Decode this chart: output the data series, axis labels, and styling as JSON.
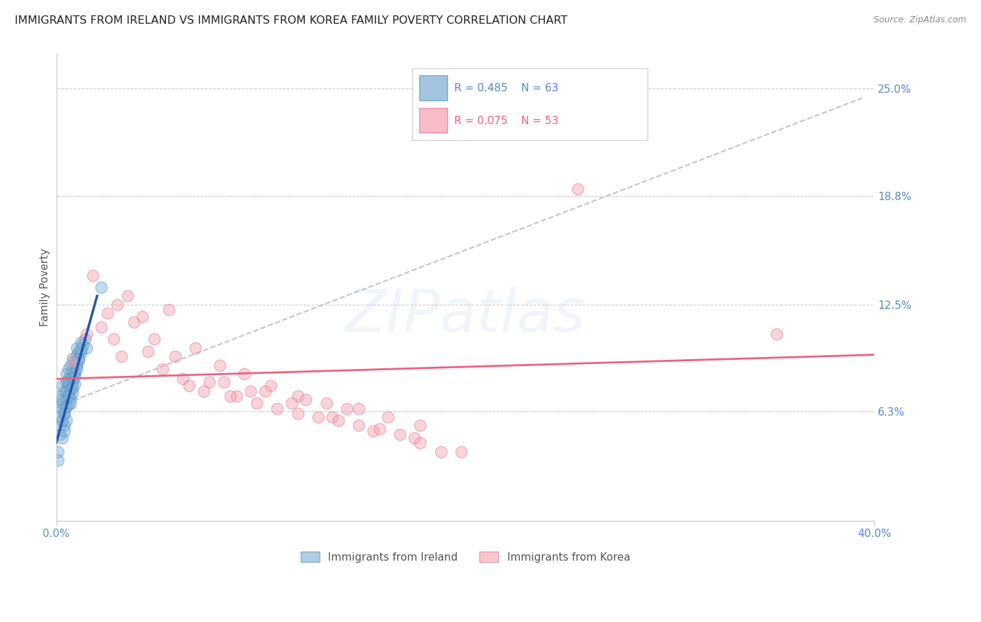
{
  "title": "IMMIGRANTS FROM IRELAND VS IMMIGRANTS FROM KOREA FAMILY POVERTY CORRELATION CHART",
  "source": "Source: ZipAtlas.com",
  "ylabel": "Family Poverty",
  "y_tick_labels": [
    "25.0%",
    "18.8%",
    "12.5%",
    "6.3%"
  ],
  "y_tick_values": [
    0.25,
    0.188,
    0.125,
    0.063
  ],
  "xlim": [
    0.0,
    0.4
  ],
  "ylim": [
    0.0,
    0.27
  ],
  "ireland_color": "#7BAFD4",
  "korea_color": "#F4A0B0",
  "ireland_edge_color": "#5590C0",
  "korea_edge_color": "#E07090",
  "ireland_line_color": "#2255AA",
  "korea_line_color": "#EE6080",
  "trend_line_color": "#BBBBBB",
  "legend_r_ireland": "R = 0.485",
  "legend_n_ireland": "N = 63",
  "legend_r_korea": "R = 0.075",
  "legend_n_korea": "N = 53",
  "ireland_label": "Immigrants from Ireland",
  "korea_label": "Immigrants from Korea",
  "ireland_scatter_x": [
    0.002,
    0.003,
    0.003,
    0.004,
    0.004,
    0.005,
    0.005,
    0.005,
    0.006,
    0.006,
    0.006,
    0.006,
    0.007,
    0.007,
    0.007,
    0.008,
    0.008,
    0.008,
    0.009,
    0.009,
    0.01,
    0.01,
    0.01,
    0.011,
    0.011,
    0.012,
    0.012,
    0.013,
    0.014,
    0.015,
    0.002,
    0.003,
    0.003,
    0.004,
    0.004,
    0.005,
    0.005,
    0.006,
    0.006,
    0.007,
    0.007,
    0.008,
    0.008,
    0.009,
    0.009,
    0.01,
    0.011,
    0.012,
    0.002,
    0.002,
    0.003,
    0.003,
    0.004,
    0.004,
    0.005,
    0.006,
    0.007,
    0.008,
    0.009,
    0.01,
    0.001,
    0.001,
    0.022
  ],
  "ireland_scatter_y": [
    0.072,
    0.068,
    0.078,
    0.065,
    0.075,
    0.07,
    0.08,
    0.085,
    0.073,
    0.078,
    0.082,
    0.088,
    0.076,
    0.083,
    0.09,
    0.08,
    0.087,
    0.094,
    0.085,
    0.092,
    0.09,
    0.096,
    0.1,
    0.093,
    0.098,
    0.097,
    0.103,
    0.102,
    0.105,
    0.1,
    0.06,
    0.065,
    0.07,
    0.055,
    0.062,
    0.058,
    0.075,
    0.067,
    0.08,
    0.071,
    0.076,
    0.074,
    0.082,
    0.079,
    0.086,
    0.088,
    0.094,
    0.099,
    0.05,
    0.055,
    0.048,
    0.058,
    0.052,
    0.062,
    0.066,
    0.072,
    0.068,
    0.077,
    0.083,
    0.091,
    0.04,
    0.035,
    0.135
  ],
  "korea_scatter_x": [
    0.008,
    0.015,
    0.022,
    0.03,
    0.038,
    0.048,
    0.058,
    0.068,
    0.08,
    0.092,
    0.105,
    0.118,
    0.132,
    0.148,
    0.162,
    0.178,
    0.025,
    0.042,
    0.062,
    0.082,
    0.102,
    0.122,
    0.142,
    0.035,
    0.055,
    0.075,
    0.095,
    0.115,
    0.135,
    0.155,
    0.175,
    0.018,
    0.032,
    0.052,
    0.072,
    0.088,
    0.108,
    0.128,
    0.148,
    0.168,
    0.188,
    0.028,
    0.045,
    0.065,
    0.085,
    0.098,
    0.118,
    0.138,
    0.158,
    0.178,
    0.198,
    0.352,
    0.255
  ],
  "korea_scatter_y": [
    0.092,
    0.108,
    0.112,
    0.125,
    0.115,
    0.105,
    0.095,
    0.1,
    0.09,
    0.085,
    0.078,
    0.072,
    0.068,
    0.065,
    0.06,
    0.055,
    0.12,
    0.118,
    0.082,
    0.08,
    0.075,
    0.07,
    0.065,
    0.13,
    0.122,
    0.08,
    0.075,
    0.068,
    0.06,
    0.052,
    0.048,
    0.142,
    0.095,
    0.088,
    0.075,
    0.072,
    0.065,
    0.06,
    0.055,
    0.05,
    0.04,
    0.105,
    0.098,
    0.078,
    0.072,
    0.068,
    0.062,
    0.058,
    0.053,
    0.045,
    0.04,
    0.108,
    0.192
  ],
  "ireland_line_x": [
    0.0,
    0.02
  ],
  "ireland_line_y": [
    0.045,
    0.13
  ],
  "korea_line_x": [
    0.0,
    0.4
  ],
  "korea_line_y": [
    0.082,
    0.096
  ],
  "trend_line_x": [
    0.005,
    0.395
  ],
  "trend_line_y": [
    0.068,
    0.245
  ]
}
